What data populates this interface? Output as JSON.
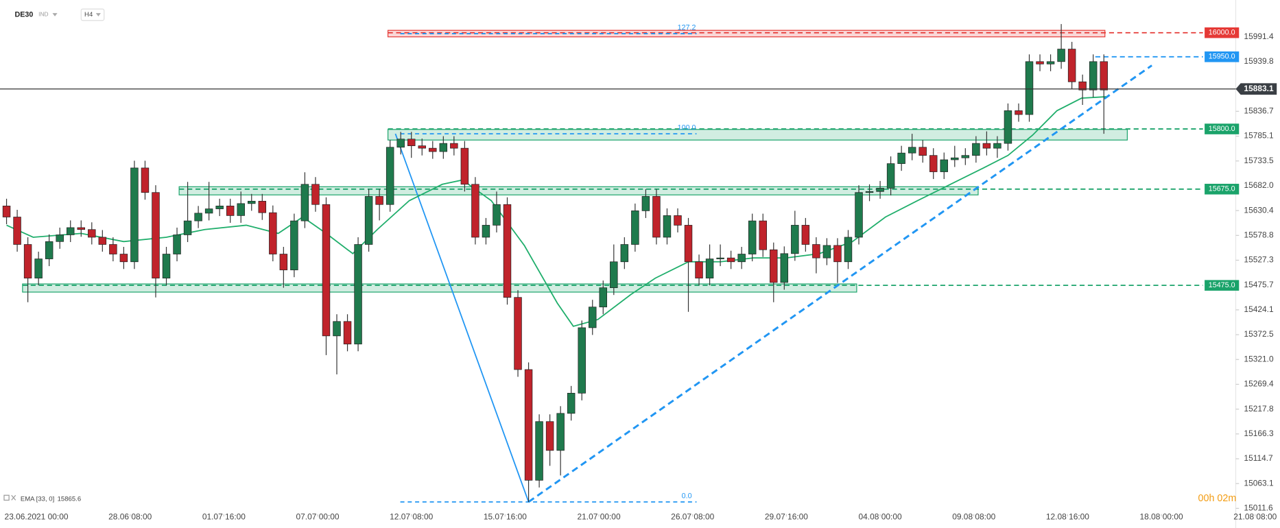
{
  "chart_data": {
    "type": "candlestick",
    "symbol": "DE30",
    "market": "IND",
    "timeframe": "H4",
    "countdown": "00h 02m",
    "xlim": [
      -0.615,
      115.38
    ],
    "ylim": [
      14979.3,
      16068.0
    ],
    "xticks": [
      {
        "value": 2.8,
        "label": "23.06.2021  00:00"
      },
      {
        "value": 11.6,
        "label": "28.06  08:00"
      },
      {
        "value": 20.4,
        "label": "01.07  16:00"
      },
      {
        "value": 29.2,
        "label": "07.07  00:00"
      },
      {
        "value": 38,
        "label": "12.07  08:00"
      },
      {
        "value": 46.8,
        "label": "15.07  16:00"
      },
      {
        "value": 55.6,
        "label": "21.07  00:00"
      },
      {
        "value": 64.4,
        "label": "26.07  08:00"
      },
      {
        "value": 73.2,
        "label": "29.07  16:00"
      },
      {
        "value": 82,
        "label": "04.08  00:00"
      },
      {
        "value": 90.8,
        "label": "09.08  08:00"
      },
      {
        "value": 99.6,
        "label": "12.08  16:00"
      },
      {
        "value": 108.4,
        "label": "18.08  00:00"
      },
      {
        "value": 117.2,
        "label": "21.08  08:00"
      }
    ],
    "yticks": [
      15991.4,
      15939.8,
      15836.7,
      15785.1,
      15733.5,
      {
        "value": 15682,
        "label": "15682.0"
      },
      15630.4,
      15578.8,
      15527.3,
      15475.7,
      15424.1,
      15372.5,
      {
        "value": 15321,
        "label": "15321.0"
      },
      15269.4,
      15217.8,
      15166.3,
      15114.7,
      15063.1,
      15011.6
    ],
    "candles": {
      "up_color": "#1f7a4d",
      "down_color": "#c0232b",
      "open": [
        15640,
        15617,
        15560,
        15490,
        15530,
        15566,
        15580,
        15595,
        15591,
        15575,
        15560,
        15540,
        15524,
        15719,
        15668,
        15490,
        15540,
        15580,
        15609,
        15625,
        15634,
        15640,
        15620,
        15645,
        15650,
        15626,
        15540,
        15507,
        15609,
        15685,
        15643,
        15370,
        15400,
        15353,
        15560,
        15660,
        15643,
        15762,
        15779,
        15765,
        15760,
        15753,
        15770,
        15760,
        15685,
        15575,
        15600,
        15643,
        15450,
        15300,
        15070,
        15192,
        15132,
        15209,
        15251,
        15387,
        15430,
        15470,
        15524,
        15560,
        15630,
        15660,
        15575,
        15620,
        15600,
        15524,
        15490,
        15530,
        15532,
        15524,
        15540,
        15609,
        15549,
        15481,
        15541,
        15600,
        15560,
        15532,
        15558,
        15524,
        15575,
        15668,
        15670,
        15677,
        15728,
        15750,
        15762,
        15745,
        15711,
        15736,
        15740,
        15745,
        15770,
        15760,
        15770,
        15838,
        15830,
        15940,
        15935,
        15940,
        15966,
        15898,
        15881,
        15940
      ],
      "high": [
        15655,
        15632,
        15575,
        15545,
        15581,
        15595,
        15610,
        15610,
        15606,
        15590,
        15575,
        15555,
        15734,
        15734,
        15683,
        15555,
        15595,
        15690,
        15640,
        15690,
        15655,
        15655,
        15670,
        15665,
        15665,
        15641,
        15555,
        15624,
        15710,
        15700,
        15658,
        15415,
        15415,
        15575,
        15675,
        15675,
        15777,
        15794,
        15794,
        15780,
        15775,
        15785,
        15785,
        15775,
        15700,
        15615,
        15670,
        15658,
        15465,
        15315,
        15207,
        15207,
        15224,
        15266,
        15402,
        15445,
        15485,
        15560,
        15575,
        15645,
        15675,
        15675,
        15635,
        15635,
        15615,
        15539,
        15560,
        15560,
        15547,
        15555,
        15624,
        15624,
        15564,
        15556,
        15630,
        15615,
        15575,
        15573,
        15573,
        15590,
        15683,
        15685,
        15692,
        15743,
        15765,
        15790,
        15777,
        15760,
        15751,
        15765,
        15760,
        15785,
        15795,
        15785,
        15853,
        15853,
        15955,
        15955,
        15955,
        16018,
        15981,
        15913,
        15955,
        15955
      ],
      "low": [
        15602,
        15545,
        15440,
        15475,
        15515,
        15551,
        15565,
        15576,
        15560,
        15545,
        15525,
        15509,
        15509,
        15653,
        15450,
        15475,
        15525,
        15565,
        15594,
        15610,
        15619,
        15605,
        15605,
        15630,
        15611,
        15525,
        15470,
        15492,
        15594,
        15628,
        15330,
        15290,
        15338,
        15338,
        15545,
        15610,
        15628,
        15747,
        15740,
        15745,
        15738,
        15738,
        15745,
        15670,
        15560,
        15560,
        15585,
        15435,
        15285,
        15025,
        15055,
        15100,
        15080,
        15194,
        15236,
        15372,
        15415,
        15455,
        15509,
        15545,
        15615,
        15560,
        15560,
        15585,
        15420,
        15475,
        15475,
        15515,
        15509,
        15509,
        15525,
        15534,
        15440,
        15466,
        15526,
        15545,
        15500,
        15517,
        15480,
        15509,
        15560,
        15650,
        15655,
        15662,
        15713,
        15735,
        15730,
        15696,
        15696,
        15721,
        15725,
        15730,
        15745,
        15740,
        15755,
        15815,
        15815,
        15920,
        15920,
        15925,
        15883,
        15850,
        15866,
        15790
      ],
      "close": [
        15617,
        15560,
        15490,
        15530,
        15566,
        15580,
        15595,
        15591,
        15575,
        15560,
        15540,
        15524,
        15719,
        15668,
        15490,
        15540,
        15580,
        15609,
        15625,
        15634,
        15640,
        15620,
        15645,
        15650,
        15626,
        15540,
        15507,
        15609,
        15685,
        15643,
        15370,
        15400,
        15353,
        15560,
        15660,
        15643,
        15762,
        15779,
        15765,
        15760,
        15753,
        15770,
        15760,
        15685,
        15575,
        15600,
        15643,
        15450,
        15300,
        15070,
        15192,
        15132,
        15209,
        15251,
        15387,
        15430,
        15470,
        15524,
        15560,
        15630,
        15660,
        15575,
        15620,
        15600,
        15524,
        15490,
        15530,
        15532,
        15524,
        15540,
        15609,
        15549,
        15481,
        15541,
        15600,
        15560,
        15532,
        15558,
        15524,
        15575,
        15668,
        15670,
        15677,
        15728,
        15750,
        15762,
        15745,
        15711,
        15736,
        15740,
        15745,
        15770,
        15760,
        15770,
        15838,
        15830,
        15940,
        15935,
        15940,
        15966,
        15898,
        15881,
        15940,
        15881
      ]
    },
    "ema": {
      "label": "EMA [33, 0]",
      "last": 15865.6,
      "color": "#1fae6b",
      "x": [
        0,
        2.5,
        7,
        11,
        15,
        18.6,
        22.5,
        25.5,
        27.8,
        30,
        32.5,
        34.8,
        37.8,
        40.9,
        42.8,
        45.5,
        48.6,
        51.7,
        53.2,
        55.5,
        58.6,
        60.9,
        64,
        67,
        70.1,
        73.2,
        76.3,
        79.4,
        82.5,
        85.5,
        88.6,
        91.7,
        94,
        96.3,
        98.6,
        100.9,
        103.2
      ],
      "values": [
        15600,
        15575,
        15583,
        15566,
        15575,
        15591,
        15600,
        15583,
        15617,
        15583,
        15541,
        15591,
        15651,
        15685,
        15694,
        15651,
        15558,
        15438,
        15390,
        15404,
        15456,
        15490,
        15524,
        15524,
        15532,
        15532,
        15541,
        15566,
        15617,
        15651,
        15685,
        15719,
        15745,
        15787,
        15838,
        15864,
        15867
      ]
    },
    "last_price": 15883.1,
    "levels": [
      {
        "value": 16000,
        "label": "16000.0",
        "color": "#e53935",
        "from": 35.8
      },
      {
        "value": 15950,
        "label": "15950.0",
        "color": "#2196f3",
        "from": 102.2
      },
      {
        "value": 15800,
        "label": "15800.0",
        "color": "#1aa36a",
        "from": 35.8
      },
      {
        "value": 15675,
        "label": "15675.0",
        "color": "#1aa36a",
        "from": 16.2
      },
      {
        "value": 15475,
        "label": "15475.0",
        "color": "#1aa36a",
        "from": 1.5
      }
    ],
    "zones": [
      {
        "low": 15991.4,
        "high": 16005,
        "from": 35.8,
        "to": 103.1,
        "color": "#e53935"
      },
      {
        "low": 15777,
        "high": 15799,
        "from": 35.8,
        "to": 105.2,
        "color": "#1aa36a"
      },
      {
        "low": 15663,
        "high": 15680,
        "from": 16.2,
        "to": 91.2,
        "color": "#1aa36a"
      },
      {
        "low": 15461,
        "high": 15478,
        "from": 1.5,
        "to": 79.8,
        "color": "#1aa36a"
      }
    ],
    "fib": {
      "x": [
        36.5,
        49
      ],
      "prices": [
        15790,
        15025
      ],
      "color": "#2196f3",
      "levels": [
        127.2,
        {
          "value": 100,
          "label": "100.0"
        },
        {
          "value": 0,
          "label": "0.0"
        }
      ]
    },
    "trendline": {
      "x": [
        49,
        107.5
      ],
      "values": [
        15025,
        15932
      ],
      "color": "#2196f3"
    }
  }
}
